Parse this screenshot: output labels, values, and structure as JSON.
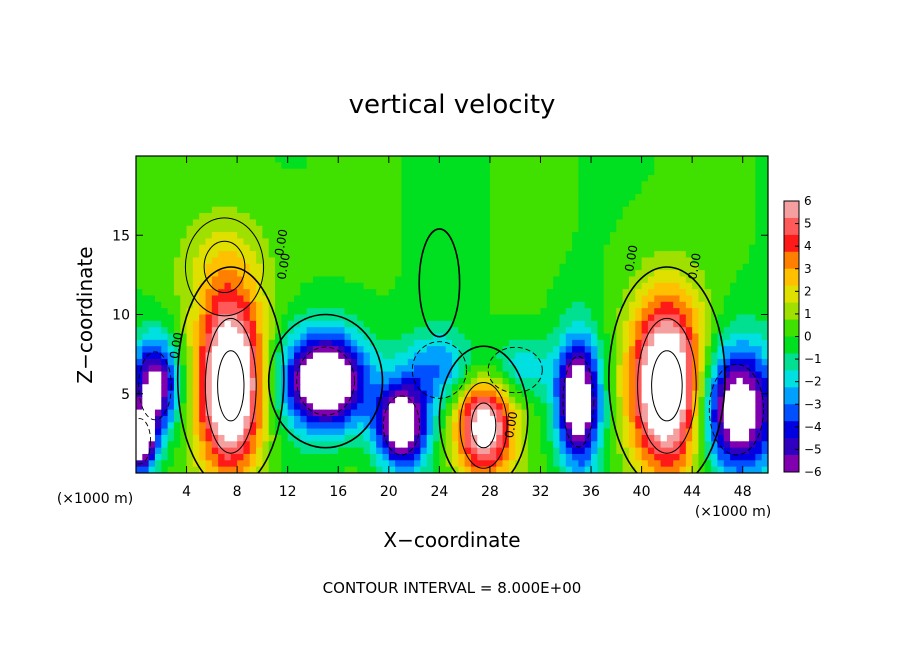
{
  "chart_data": {
    "type": "heatmap",
    "title": "vertical velocity",
    "xlabel": "X−coordinate",
    "ylabel": "Z−coordinate",
    "x_unit_left": "(×1000 m)",
    "x_unit_right": "(×1000 m)",
    "xlim": [
      0,
      50
    ],
    "ylim": [
      0,
      20
    ],
    "x_ticks": [
      4,
      8,
      12,
      16,
      20,
      24,
      28,
      32,
      36,
      40,
      44,
      48
    ],
    "y_ticks": [
      5,
      10,
      15
    ],
    "colorbar": {
      "range": [
        -6,
        6
      ],
      "ticks": [
        "6",
        "5",
        "4",
        "3",
        "2",
        "1",
        "0",
        "−1",
        "−2",
        "−3",
        "−4",
        "−5",
        "−6"
      ],
      "colors": [
        "#f5a0a0",
        "#ff5a5a",
        "#ff1a1a",
        "#ff8000",
        "#ffc000",
        "#e0e000",
        "#a0e000",
        "#40e000",
        "#00e020",
        "#00e090",
        "#00e0e0",
        "#00a0ff",
        "#0050ff",
        "#0000e0",
        "#3000c0",
        "#8000b0"
      ]
    },
    "contour_labels": [
      "0.00",
      "0.00",
      "0.00",
      "0.00",
      "0.00",
      "0.00"
    ],
    "features": [
      {
        "kind": "updraft",
        "x": 7.5,
        "z": 5.5,
        "rx": 2.6,
        "rz": 5.5,
        "peak": 9
      },
      {
        "kind": "updraft",
        "x": 42,
        "z": 5.5,
        "rx": 3.0,
        "rz": 5.5,
        "peak": 9
      },
      {
        "kind": "updraft",
        "x": 27.5,
        "z": 3.0,
        "rx": 2.4,
        "rz": 3.5,
        "peak": 7
      },
      {
        "kind": "updraft",
        "x": 7,
        "z": 13,
        "rx": 4,
        "rz": 4,
        "peak": 1.5
      },
      {
        "kind": "downdraft",
        "x": 15,
        "z": 5.8,
        "rx": 3.2,
        "rz": 3.0,
        "peak": -9
      },
      {
        "kind": "downdraft",
        "x": 21,
        "z": 3.0,
        "rx": 2.0,
        "rz": 2.6,
        "peak": -8
      },
      {
        "kind": "downdraft",
        "x": 35,
        "z": 4.5,
        "rx": 1.7,
        "rz": 4.0,
        "peak": -8
      },
      {
        "kind": "downdraft",
        "x": 47.5,
        "z": 4.0,
        "rx": 3.0,
        "rz": 4.0,
        "peak": -8
      },
      {
        "kind": "downdraft",
        "x": 1.5,
        "z": 5.5,
        "rx": 1.8,
        "rz": 3.0,
        "peak": -7
      },
      {
        "kind": "downdraft",
        "x": 0.3,
        "z": 2.0,
        "rx": 1.2,
        "rz": 2.0,
        "peak": -8
      },
      {
        "kind": "downdraft",
        "x": 24,
        "z": 6.5,
        "rx": 3.0,
        "rz": 2.5,
        "peak": -3
      },
      {
        "kind": "downdraft",
        "x": 30,
        "z": 6.5,
        "rx": 3.0,
        "rz": 2.0,
        "peak": -2.5
      }
    ]
  },
  "footer": {
    "contour_interval": "CONTOUR INTERVAL = 8.000E+00"
  }
}
